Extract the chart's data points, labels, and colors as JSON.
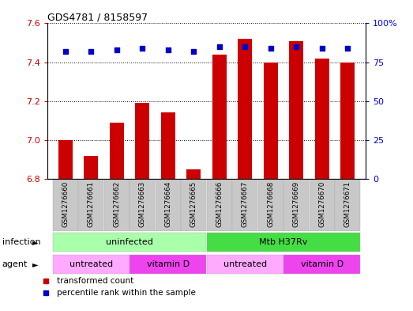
{
  "title": "GDS4781 / 8158597",
  "samples": [
    "GSM1276660",
    "GSM1276661",
    "GSM1276662",
    "GSM1276663",
    "GSM1276664",
    "GSM1276665",
    "GSM1276666",
    "GSM1276667",
    "GSM1276668",
    "GSM1276669",
    "GSM1276670",
    "GSM1276671"
  ],
  "bar_values": [
    7.0,
    6.92,
    7.09,
    7.19,
    7.14,
    6.85,
    7.44,
    7.52,
    7.4,
    7.51,
    7.42,
    7.4
  ],
  "percentile_values": [
    82,
    82,
    83,
    84,
    83,
    82,
    85,
    85,
    84,
    85,
    84,
    84
  ],
  "bar_color": "#cc0000",
  "percentile_color": "#0000cc",
  "ylim_left": [
    6.8,
    7.6
  ],
  "ylim_right": [
    0,
    100
  ],
  "yticks_left": [
    6.8,
    7.0,
    7.2,
    7.4,
    7.6
  ],
  "yticks_right": [
    0,
    25,
    50,
    75,
    100
  ],
  "ytick_labels_right": [
    "0",
    "25",
    "50",
    "75",
    "100%"
  ],
  "infection_labels": [
    {
      "text": "uninfected",
      "start": 0,
      "end": 5,
      "color": "#aaffaa"
    },
    {
      "text": "Mtb H37Rv",
      "start": 6,
      "end": 11,
      "color": "#44dd44"
    }
  ],
  "agent_labels": [
    {
      "text": "untreated",
      "start": 0,
      "end": 2,
      "color": "#ffaaff"
    },
    {
      "text": "vitamin D",
      "start": 3,
      "end": 5,
      "color": "#ee44ee"
    },
    {
      "text": "untreated",
      "start": 6,
      "end": 8,
      "color": "#ffaaff"
    },
    {
      "text": "vitamin D",
      "start": 9,
      "end": 11,
      "color": "#ee44ee"
    }
  ],
  "legend_items": [
    {
      "label": "transformed count",
      "color": "#cc0000"
    },
    {
      "label": "percentile rank within the sample",
      "color": "#0000cc"
    }
  ],
  "bar_bottom": 6.8,
  "sample_box_color": "#c8c8c8",
  "infection_label": "infection",
  "agent_label": "agent",
  "grid_ticks": [
    7.0,
    7.2,
    7.4,
    7.6
  ]
}
